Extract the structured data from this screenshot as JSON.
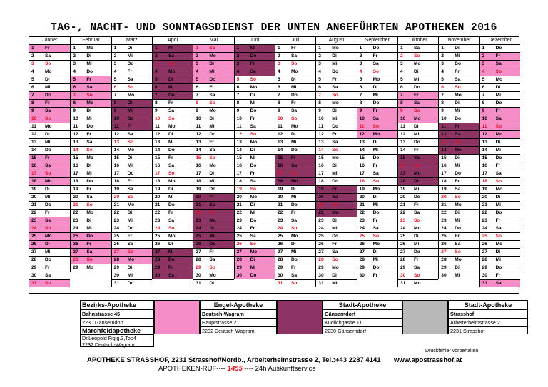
{
  "title": "TAG-, NACHT- UND SONNTAGSDIENST DER UNTEN ANGEFÜHRTEN APOTHEKEN  2016",
  "colors": {
    "white": "#ffffff",
    "pink": "#f58dc9",
    "plum": "#8e3465",
    "grey": "#b8b8b8",
    "sunday_text": "#e01020"
  },
  "months": [
    {
      "name": "Jänner",
      "days": 31,
      "weekdays": [
        "Fr",
        "Sa",
        "So",
        "Mo",
        "Di",
        "Mi",
        "Do",
        "Fr",
        "Sa",
        "So",
        "Mo",
        "Di",
        "Mi",
        "Do",
        "Fr",
        "Sa",
        "So",
        "Mo",
        "Di",
        "Mi",
        "Do",
        "Fr",
        "Sa",
        "So",
        "Mo",
        "Di",
        "Mi",
        "Do",
        "Fr",
        "Sa",
        "So"
      ],
      "colors": "1000001111000011110000111100001"
    },
    {
      "name": "Februar",
      "days": 29,
      "weekdays": [
        "Mo",
        "Di",
        "Mi",
        "Do",
        "Fr",
        "Sa",
        "So",
        "Mo",
        "Di",
        "Mi",
        "Do",
        "Fr",
        "Sa",
        "So",
        "Mo",
        "Di",
        "Mi",
        "Do",
        "Fr",
        "Sa",
        "So",
        "Mo",
        "Di",
        "Mi",
        "Do",
        "Fr",
        "Sa",
        "So",
        "Mo"
      ],
      "colors": "00001111000000000000000011110"
    },
    {
      "name": "März",
      "days": 31,
      "weekdays": [
        "Di",
        "Mi",
        "Do",
        "Fr",
        "Sa",
        "So",
        "Mo",
        "Di",
        "Mi",
        "Do",
        "Fr",
        "Sa",
        "So",
        "Mo",
        "Di",
        "Mi",
        "Do",
        "Fr",
        "Sa",
        "So",
        "Mo",
        "Di",
        "Mi",
        "Do",
        "Fr",
        "Sa",
        "So",
        "Mo",
        "Di",
        "Mi",
        "Do"
      ],
      "colors": "0000000222200000000000000011000"
    },
    {
      "name": "April",
      "days": 30,
      "weekdays": [
        "Fr",
        "Sa",
        "So",
        "Mo",
        "Di",
        "Mi",
        "Do",
        "Fr",
        "Sa",
        "So",
        "Mo",
        "Di",
        "Mi",
        "Do",
        "Fr",
        "Sa",
        "So",
        "Mo",
        "Di",
        "Mi",
        "Do",
        "Fr",
        "Sa",
        "So",
        "Mo",
        "Di",
        "Mi",
        "Do",
        "Fr",
        "Sa"
      ],
      "colors": "222222200000000000000000002222"
    },
    {
      "name": "Mai",
      "days": 31,
      "weekdays": [
        "So",
        "Mo",
        "Di",
        "Mi",
        "Do",
        "Fr",
        "Sa",
        "So",
        "Mo",
        "Di",
        "Mi",
        "Do",
        "Fr",
        "Sa",
        "So",
        "Mo",
        "Di",
        "Mi",
        "Do",
        "Fr",
        "Sa",
        "So",
        "Mo",
        "Di",
        "Mi",
        "Do",
        "Fr",
        "Sa",
        "So",
        "Mo",
        "Di"
      ],
      "colors": "1111100000000000000222222200000"
    },
    {
      "name": "Juni",
      "days": 30,
      "weekdays": [
        "Mi",
        "Do",
        "Fr",
        "Sa",
        "So",
        "Mo",
        "Di",
        "Mi",
        "Do",
        "Fr",
        "Sa",
        "So",
        "Mo",
        "Di",
        "Mi",
        "Do",
        "Fr",
        "Sa",
        "So",
        "Mo",
        "Di",
        "Mi",
        "Do",
        "Fr",
        "Sa",
        "So",
        "Mo",
        "Di",
        "Mi",
        "Do"
      ],
      "colors": "222200000000000000000000001111"
    },
    {
      "name": "Juli",
      "days": 31,
      "weekdays": [
        "Fr",
        "Sa",
        "So",
        "Mo",
        "Di",
        "Mi",
        "Do",
        "Fr",
        "Sa",
        "So",
        "Mo",
        "Di",
        "Mi",
        "Do",
        "Fr",
        "Sa",
        "So",
        "Mo",
        "Di",
        "Mi",
        "Do",
        "Fr",
        "Sa",
        "So",
        "Mo",
        "Di",
        "Mi",
        "Do",
        "Fr",
        "Sa",
        "So"
      ],
      "colors": "0000000000000022220000000000000"
    },
    {
      "name": "August",
      "days": 31,
      "weekdays": [
        "Mo",
        "Di",
        "Mi",
        "Do",
        "Fr",
        "Sa",
        "So",
        "Mo",
        "Di",
        "Mi",
        "Do",
        "Fr",
        "Sa",
        "So",
        "Mo",
        "Di",
        "Mi",
        "Do",
        "Fr",
        "Sa",
        "So",
        "Mo",
        "Di",
        "Mi",
        "Do",
        "Fr",
        "Sa",
        "So",
        "Mo",
        "Di",
        "Mi"
      ],
      "colors": "0000000000000000002222000000000"
    },
    {
      "name": "September",
      "days": 30,
      "weekdays": [
        "Do",
        "Fr",
        "Sa",
        "So",
        "Mo",
        "Di",
        "Mi",
        "Do",
        "Fr",
        "Sa",
        "So",
        "Mo",
        "Di",
        "Mi",
        "Do",
        "Fr",
        "Sa",
        "So",
        "Mo",
        "Di",
        "Mi",
        "Do",
        "Fr",
        "Sa",
        "So",
        "Mo",
        "Di",
        "Mi",
        "Do",
        "Fr"
      ],
      "colors": "000000001111000000000000000000"
    },
    {
      "name": "Oktober",
      "days": 31,
      "weekdays": [
        "Sa",
        "So",
        "Mo",
        "Di",
        "Mi",
        "Do",
        "Fr",
        "Sa",
        "So",
        "Mo",
        "Di",
        "Mi",
        "Do",
        "Fr",
        "Sa",
        "So",
        "Mo",
        "Di",
        "Mi",
        "Do",
        "Fr",
        "Sa",
        "So",
        "Mo",
        "Di",
        "Mi",
        "Do",
        "Fr",
        "Sa",
        "So",
        "Mo"
      ],
      "colors": "0000001111000022220000000000000"
    },
    {
      "name": "November",
      "days": 30,
      "weekdays": [
        "Di",
        "Mi",
        "Do",
        "Fr",
        "Sa",
        "So",
        "Mo",
        "Di",
        "Mi",
        "Do",
        "Fr",
        "Sa",
        "So",
        "Mo",
        "Di",
        "Mi",
        "Do",
        "Fr",
        "Sa",
        "So",
        "Mo",
        "Di",
        "Mi",
        "Do",
        "Fr",
        "Sa",
        "So",
        "Mo",
        "Di",
        "Mi"
      ],
      "colors": "000000000022220000000000000000"
    },
    {
      "name": "Dezember",
      "days": 31,
      "weekdays": [
        "Do",
        "Fr",
        "Sa",
        "So",
        "Mo",
        "Di",
        "Mi",
        "Do",
        "Fr",
        "Sa",
        "So",
        "Mo",
        "Di",
        "Mi",
        "Do",
        "Fr",
        "Sa",
        "So",
        "Mo",
        "Di",
        "Mi",
        "Do",
        "Fr",
        "Sa",
        "So",
        "Mo",
        "Di",
        "Mi",
        "Do",
        "Fr",
        "Sa"
      ],
      "colors": "0111000011110000000000000000001"
    }
  ],
  "pharmacies": [
    {
      "name": "Bezirks-Apotheke",
      "color_key": "white",
      "lines": [
        "Bahnstrasse 45",
        "2230 Gänserndorf"
      ]
    },
    {
      "name": "Engel-Apotheke",
      "color_key": "pink",
      "lines": [
        "Deutsch-Wagram",
        "Hauptstrasse 21",
        "2232 Deutsch-Wagram"
      ]
    },
    {
      "name": "Stadt-Apotheke",
      "color_key": "plum",
      "lines": [
        "Gänserndorf",
        "Kudlichgasse 11",
        "2230 Gänserndorf"
      ]
    },
    {
      "name": "Stadt-Apotheke",
      "color_key": "grey",
      "lines": [
        "Strasshof",
        "Arbeiterheimstrasse 2",
        "2231 Strasshof"
      ]
    }
  ],
  "marchfeld": {
    "name": "Marchfeldapotheke",
    "lines": [
      "Dr.Leopold Figlg.3,Top4",
      "2232 Deutsch-Wagram"
    ]
  },
  "footer": {
    "druck": "Druckfehler vorbehalten",
    "address": "APOTHEKE STRASSHOF, 2231 Strasshof/Nordb., Arbeiterheimstrasse 2, Tel.:+43 2287 4141",
    "web": "www.apostrasshof.at",
    "ruf_prefix": "APOTHEKEN-RUF----",
    "ruf_number": "1455",
    "ruf_suffix": "---- 24h Auskunftservice"
  }
}
